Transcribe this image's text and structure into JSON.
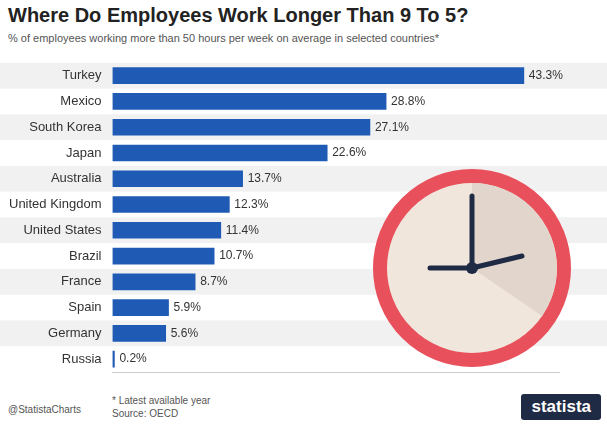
{
  "chart_data": {
    "type": "bar",
    "orientation": "horizontal",
    "title": "Where Do Employees Work Longer Than 9 To 5?",
    "subtitle": "% of employees working more than 50 hours per week on average in selected countries*",
    "categories": [
      "Turkey",
      "Mexico",
      "South Korea",
      "Japan",
      "Australia",
      "United Kingdom",
      "United States",
      "Brazil",
      "France",
      "Spain",
      "Germany",
      "Russia"
    ],
    "values": [
      43.3,
      28.8,
      27.1,
      22.6,
      13.7,
      12.3,
      11.4,
      10.7,
      8.7,
      5.9,
      5.6,
      0.2
    ],
    "value_labels": [
      "43.3%",
      "28.8%",
      "27.1%",
      "22.6%",
      "13.7%",
      "12.3%",
      "11.4%",
      "10.7%",
      "8.7%",
      "5.9%",
      "5.6%",
      "0.2%"
    ],
    "color": "#1f5bb5",
    "xlim": [
      0,
      47
    ],
    "grid": false,
    "data_labels": true,
    "tick_labels": "y"
  },
  "footer": {
    "note": "* Latest available year",
    "source": "Source: OECD",
    "credit": "@StatistaCharts",
    "brand": "statista"
  }
}
